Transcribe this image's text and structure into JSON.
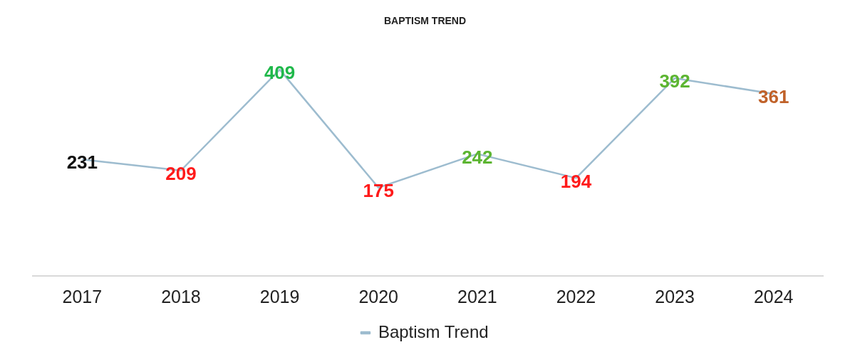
{
  "chart_data": {
    "type": "line",
    "title": "BAPTISM TREND",
    "categories": [
      "2017",
      "2018",
      "2019",
      "2020",
      "2021",
      "2022",
      "2023",
      "2024"
    ],
    "series": [
      {
        "name": "Baptism Trend",
        "color": "#9dbccf",
        "values": [
          231,
          209,
          409,
          175,
          242,
          194,
          392,
          361
        ],
        "colors": [
          "#111111",
          "#ff1a1a",
          "#1fb84a",
          "#ff1a1a",
          "#5cb531",
          "#ff1a1a",
          "#5cb531",
          "#c0622a"
        ]
      }
    ],
    "data_labels": true,
    "legend": "bottom",
    "grid": false,
    "marker": "none",
    "line_style": "solid"
  }
}
